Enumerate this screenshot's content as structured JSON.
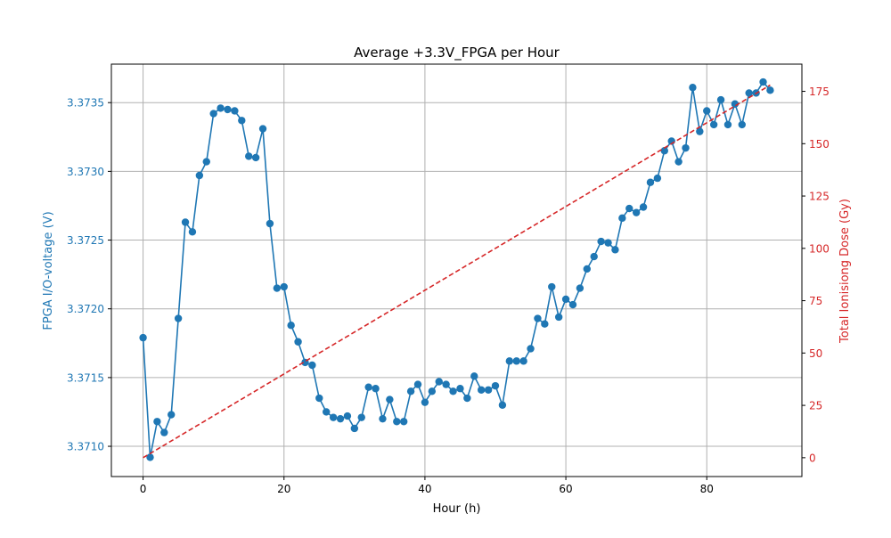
{
  "chart_data": {
    "type": "line",
    "title": "Average +3.3V_FPGA per Hour",
    "xlabel": "Hour (h)",
    "ylabel": "FPGA I/O-voltage (V)",
    "y2label": "Total Ionisiong Dose (Gy)",
    "xlim": [
      -4.5,
      93.5
    ],
    "ylim": [
      3.37078,
      3.37378
    ],
    "y2lim": [
      -9,
      188
    ],
    "xticks": [
      0,
      20,
      40,
      60,
      80
    ],
    "yticks": [
      3.371,
      3.3715,
      3.372,
      3.3725,
      3.373,
      3.3735
    ],
    "ytick_labels": [
      "3.3710",
      "3.3715",
      "3.3720",
      "3.3725",
      "3.3730",
      "3.3735"
    ],
    "y2ticks": [
      0,
      25,
      50,
      75,
      100,
      125,
      150,
      175
    ],
    "grid": true,
    "colors": {
      "voltage": "#1f77b4",
      "dose": "#d62728",
      "grid": "#b0b0b0",
      "axis": "#000000"
    },
    "series": [
      {
        "axis": "left",
        "style": "line-markers",
        "x": [
          0,
          1,
          2,
          3,
          4,
          5,
          6,
          7,
          8,
          9,
          10,
          11,
          12,
          13,
          14,
          15,
          16,
          17,
          18,
          19,
          20,
          21,
          22,
          23,
          24,
          25,
          26,
          27,
          28,
          29,
          30,
          31,
          32,
          33,
          34,
          35,
          36,
          37,
          38,
          39,
          40,
          41,
          42,
          43,
          44,
          45,
          46,
          47,
          48,
          49,
          50,
          51,
          52,
          53,
          54,
          55,
          56,
          57,
          58,
          59,
          60,
          61,
          62,
          63,
          64,
          65,
          66,
          67,
          68,
          69,
          70,
          71,
          72,
          73,
          74,
          75,
          76,
          77,
          78,
          79,
          80,
          81,
          82,
          83,
          84,
          85,
          86,
          87,
          88,
          89
        ],
        "values": [
          3.37179,
          3.37092,
          3.37118,
          3.3711,
          3.37123,
          3.37193,
          3.37263,
          3.37256,
          3.37297,
          3.37307,
          3.37342,
          3.37346,
          3.37345,
          3.37344,
          3.37337,
          3.37311,
          3.3731,
          3.37331,
          3.37262,
          3.37215,
          3.37216,
          3.37188,
          3.37176,
          3.37161,
          3.37159,
          3.37135,
          3.37125,
          3.37121,
          3.3712,
          3.37122,
          3.37113,
          3.37121,
          3.37143,
          3.37142,
          3.3712,
          3.37134,
          3.37118,
          3.37118,
          3.3714,
          3.37145,
          3.37132,
          3.3714,
          3.37147,
          3.37145,
          3.3714,
          3.37142,
          3.37135,
          3.37151,
          3.37141,
          3.37141,
          3.37144,
          3.3713,
          3.37162,
          3.37162,
          3.37162,
          3.37171,
          3.37193,
          3.37189,
          3.37216,
          3.37194,
          3.37207,
          3.37203,
          3.37215,
          3.37229,
          3.37238,
          3.37249,
          3.37248,
          3.37243,
          3.37266,
          3.37273,
          3.3727,
          3.37274,
          3.37292,
          3.37295,
          3.37315,
          3.37322,
          3.37307,
          3.37317,
          3.37361,
          3.37329,
          3.37344,
          3.37334,
          3.37352,
          3.37334,
          3.37349,
          3.37334,
          3.37357,
          3.37357,
          3.37365,
          3.37359
        ]
      },
      {
        "axis": "right",
        "style": "dashed",
        "x": [
          0,
          89
        ],
        "values": [
          0,
          178
        ]
      }
    ]
  }
}
